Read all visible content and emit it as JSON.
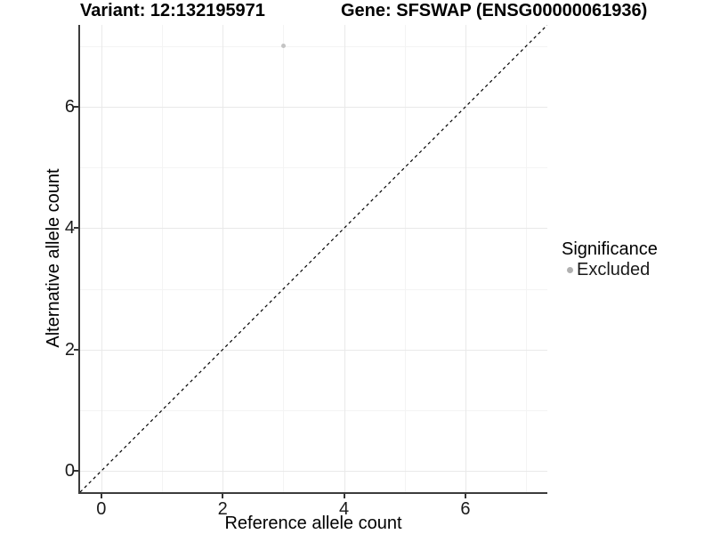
{
  "titles": {
    "variant": "Variant: 12:132195971",
    "gene": "Gene: SFSWAP (ENSG00000061936)"
  },
  "chart_data": {
    "type": "scatter",
    "xlabel": "Reference allele count",
    "ylabel": "Alternative allele count",
    "xlim": [
      -0.35,
      7.35
    ],
    "ylim": [
      -0.35,
      7.35
    ],
    "x_major_ticks": [
      0,
      2,
      4,
      6
    ],
    "y_major_ticks": [
      0,
      2,
      4,
      6
    ],
    "x_minor_gridlines": [
      1,
      3,
      5,
      7
    ],
    "y_minor_gridlines": [
      1,
      3,
      5,
      7
    ],
    "grid": true,
    "reference_line": {
      "type": "identity",
      "style": "dashed",
      "color": "#000000"
    },
    "series": [
      {
        "name": "Excluded",
        "points": [
          {
            "x": 3,
            "y": 7
          }
        ]
      }
    ],
    "legend": {
      "title": "Significance",
      "position": "right",
      "items": [
        {
          "label": "Excluded",
          "color": "#b0b0b0"
        }
      ]
    },
    "colors": {
      "point": "#c4c4c4",
      "legend_point": "#b0b0b0",
      "grid_major": "#e9e9e9",
      "grid_minor": "#f4f4f4",
      "axis_line": "#3c3c3c",
      "reference_line": "#000000"
    }
  }
}
